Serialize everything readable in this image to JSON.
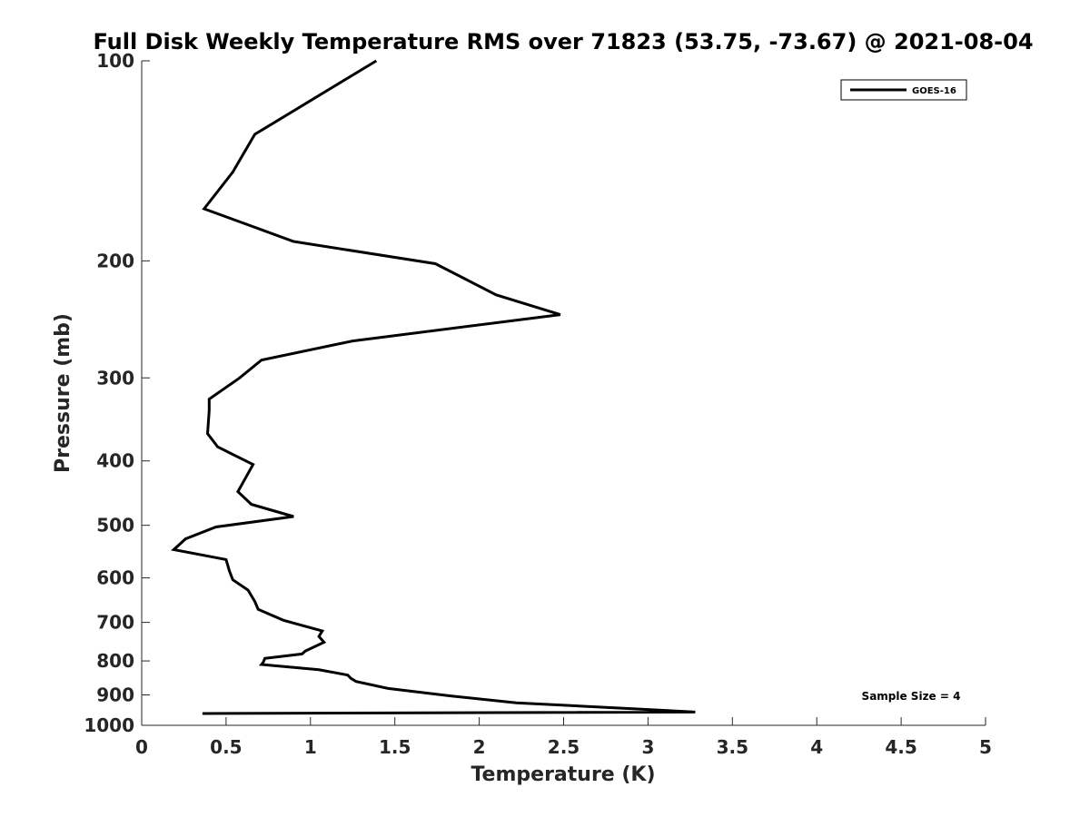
{
  "chart_data": {
    "type": "line",
    "title": "Full Disk Weekly Temperature RMS over 71823 (53.75, -73.67) @ 2021-08-04",
    "xlabel": "Temperature (K)",
    "ylabel": "Pressure (mb)",
    "xlim": [
      0,
      5
    ],
    "ylim": [
      100,
      1000
    ],
    "y_scale": "log",
    "y_reversed": true,
    "x_ticks": [
      0,
      0.5,
      1,
      1.5,
      2,
      2.5,
      3,
      3.5,
      4,
      4.5,
      5
    ],
    "x_tick_labels": [
      "0",
      "0.5",
      "1",
      "1.5",
      "2",
      "2.5",
      "3",
      "3.5",
      "4",
      "4.5",
      "5"
    ],
    "y_ticks": [
      100,
      200,
      300,
      400,
      500,
      600,
      700,
      800,
      900,
      1000
    ],
    "y_tick_labels": [
      "100",
      "200",
      "300",
      "400",
      "500",
      "600",
      "700",
      "800",
      "900",
      "1000"
    ],
    "grid": false,
    "legend_position": "top-right",
    "series": [
      {
        "name": "GOES-16",
        "color": "#000000",
        "x": [
          1.39,
          0.67,
          0.54,
          0.37,
          0.9,
          1.74,
          2.1,
          2.48,
          1.25,
          0.71,
          0.58,
          0.4,
          0.4,
          0.39,
          0.45,
          0.66,
          0.57,
          0.65,
          0.9,
          0.44,
          0.26,
          0.19,
          0.5,
          0.52,
          0.54,
          0.63,
          0.67,
          0.69,
          0.84,
          1.07,
          1.05,
          1.08,
          0.97,
          0.95,
          0.73,
          0.72,
          0.71,
          1.05,
          1.22,
          1.24,
          1.27,
          1.46,
          1.83,
          2.22,
          3.04,
          3.28,
          0.36
        ],
        "y": [
          100,
          129,
          147,
          167,
          187,
          202,
          225,
          241,
          264,
          282,
          300,
          323,
          336,
          364,
          381,
          405,
          445,
          465,
          485,
          503,
          524,
          544,
          563,
          586,
          604,
          626,
          651,
          669,
          695,
          721,
          735,
          750,
          773,
          781,
          793,
          804,
          810,
          825,
          840,
          850,
          859,
          880,
          903,
          925,
          948,
          955,
          960
        ]
      }
    ],
    "annotation": "Sample Size = 4"
  }
}
